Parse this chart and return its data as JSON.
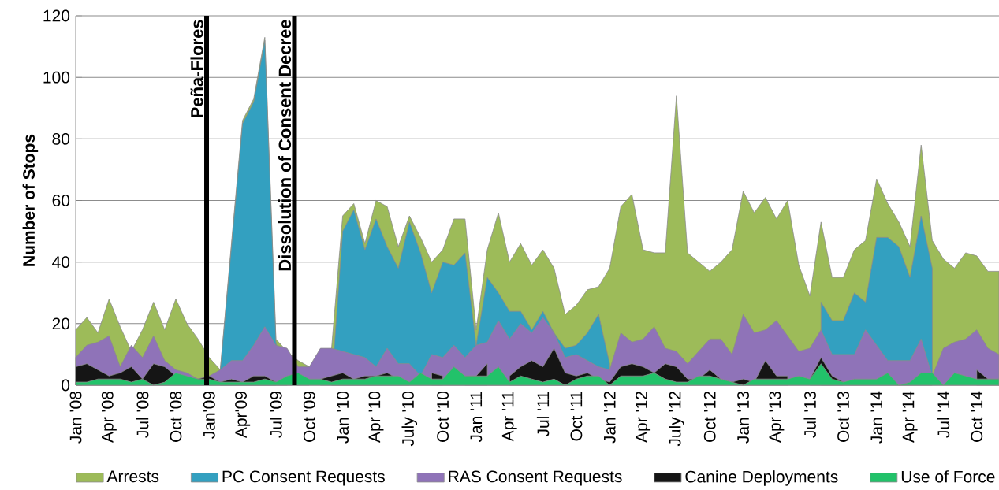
{
  "chart_data": {
    "type": "area",
    "ylabel": "Number of Stops",
    "x": [
      "2008-01",
      "2008-02",
      "2008-03",
      "2008-04",
      "2008-05",
      "2008-06",
      "2008-07",
      "2008-08",
      "2008-09",
      "2008-10",
      "2008-11",
      "2008-12",
      "2009-01",
      "2009-02",
      "2009-03",
      "2009-04",
      "2009-05",
      "2009-06",
      "2009-07",
      "2009-08",
      "2009-09",
      "2009-10",
      "2009-11",
      "2009-12",
      "2010-01",
      "2010-02",
      "2010-03",
      "2010-04",
      "2010-05",
      "2010-06",
      "2010-07",
      "2010-08",
      "2010-09",
      "2010-10",
      "2010-11",
      "2010-12",
      "2011-01",
      "2011-02",
      "2011-03",
      "2011-04",
      "2011-05",
      "2011-06",
      "2011-07",
      "2011-08",
      "2011-09",
      "2011-10",
      "2011-11",
      "2011-12",
      "2012-01",
      "2012-02",
      "2012-03",
      "2012-04",
      "2012-05",
      "2012-06",
      "2012-07",
      "2012-08",
      "2012-09",
      "2012-10",
      "2012-11",
      "2012-12",
      "2013-01",
      "2013-02",
      "2013-03",
      "2013-04",
      "2013-05",
      "2013-06",
      "2013-07",
      "2013-08",
      "2013-09",
      "2013-10",
      "2013-11",
      "2013-12",
      "2014-01",
      "2014-02",
      "2014-03",
      "2014-04",
      "2014-05",
      "2014-06",
      "2014-07",
      "2014-08",
      "2014-09",
      "2014-10",
      "2014-11",
      "2014-12"
    ],
    "series": [
      {
        "name": "Arrests",
        "color": "#9dbb59",
        "values": [
          18,
          22,
          17,
          28,
          19,
          11,
          18,
          27,
          18,
          28,
          20,
          15,
          9,
          5,
          46,
          86,
          93,
          113,
          15,
          11,
          8,
          6,
          null,
          12,
          55,
          59,
          46,
          60,
          58,
          45,
          55,
          48,
          40,
          44,
          54,
          54,
          18,
          44,
          56,
          40,
          46,
          39,
          44,
          38,
          23,
          26,
          31,
          32,
          38,
          58,
          62,
          44,
          43,
          43,
          94,
          43,
          40,
          37,
          40,
          44,
          63,
          56,
          61,
          54,
          60,
          39,
          29,
          53,
          35,
          35,
          44,
          47,
          67,
          59,
          53,
          45,
          78,
          47,
          41,
          38,
          43,
          42,
          37,
          37
        ]
      },
      {
        "name": "PC Consent Requests",
        "color": "#33a0c0",
        "values": [
          null,
          null,
          null,
          null,
          null,
          null,
          null,
          null,
          null,
          null,
          null,
          null,
          null,
          5,
          45,
          85,
          92,
          112,
          14,
          0,
          null,
          null,
          null,
          0,
          50,
          57,
          44,
          54,
          45,
          38,
          53,
          43,
          30,
          40,
          39,
          43,
          13,
          35,
          30,
          24,
          24,
          18,
          24,
          17,
          12,
          13,
          17,
          23,
          7,
          null,
          null,
          null,
          null,
          null,
          null,
          null,
          null,
          null,
          null,
          null,
          null,
          null,
          null,
          null,
          null,
          null,
          null,
          27,
          21,
          21,
          30,
          27,
          48,
          48,
          45,
          35,
          55,
          38,
          null,
          null,
          null,
          null,
          null,
          null
        ]
      },
      {
        "name": "RAS Consent Requests",
        "color": "#8f73b8",
        "values": [
          9,
          13,
          14,
          16,
          6,
          13,
          9,
          16,
          8,
          5,
          4,
          2,
          3,
          5,
          8,
          8,
          13,
          19,
          13,
          12,
          6,
          6,
          12,
          12,
          11,
          10,
          9,
          6,
          12,
          7,
          7,
          3,
          10,
          9,
          13,
          9,
          13,
          14,
          21,
          15,
          20,
          17,
          22,
          17,
          9,
          10,
          8,
          6,
          5,
          17,
          14,
          15,
          19,
          12,
          11,
          7,
          11,
          15,
          15,
          10,
          23,
          17,
          18,
          21,
          16,
          11,
          12,
          18,
          10,
          10,
          10,
          18,
          13,
          8,
          8,
          8,
          15,
          3,
          12,
          14,
          15,
          18,
          12,
          10
        ]
      },
      {
        "name": "Canine Deployments",
        "color": "#151515",
        "values": [
          6,
          7,
          5,
          3,
          4,
          6,
          2,
          7,
          6,
          3,
          2,
          2,
          3,
          1,
          2,
          1,
          3,
          3,
          1,
          null,
          null,
          null,
          2,
          3,
          4,
          2,
          3,
          3,
          4,
          2,
          1,
          null,
          4,
          3,
          null,
          3,
          3,
          7,
          null,
          3,
          6,
          8,
          6,
          12,
          4,
          3,
          4,
          2,
          1,
          6,
          7,
          6,
          4,
          7,
          6,
          2,
          2,
          5,
          2,
          1,
          2,
          1,
          8,
          3,
          3,
          null,
          2,
          9,
          3,
          1,
          null,
          null,
          null,
          null,
          null,
          null,
          null,
          null,
          null,
          null,
          null,
          5,
          2,
          2
        ]
      },
      {
        "name": "Use of Force",
        "color": "#22c26a",
        "values": [
          1,
          1,
          2,
          2,
          2,
          1,
          2,
          0,
          1,
          4,
          3,
          2,
          2,
          1,
          1,
          1,
          1,
          2,
          1,
          3,
          4,
          2,
          2,
          1,
          2,
          2,
          2,
          3,
          3,
          3,
          1,
          4,
          2,
          2,
          6,
          3,
          3,
          3,
          6,
          1,
          3,
          2,
          1,
          2,
          0,
          2,
          3,
          3,
          0,
          3,
          3,
          3,
          4,
          2,
          1,
          1,
          3,
          3,
          2,
          1,
          0,
          2,
          2,
          2,
          2,
          3,
          2,
          7,
          2,
          1,
          2,
          2,
          2,
          4,
          0,
          1,
          4,
          4,
          0,
          4,
          3,
          2,
          2,
          2
        ]
      }
    ],
    "xlim": [
      "2008-01",
      "2014-12"
    ],
    "xticks": [
      {
        "value": "2008-01",
        "label": "Jan '08"
      },
      {
        "value": "2008-04",
        "label": "Apr '08"
      },
      {
        "value": "2008-07",
        "label": "Jul '08"
      },
      {
        "value": "2008-10",
        "label": "Oct '08"
      },
      {
        "value": "2009-01",
        "label": "Jan'09"
      },
      {
        "value": "2009-04",
        "label": "Apr'09"
      },
      {
        "value": "2009-07",
        "label": "Jul '09"
      },
      {
        "value": "2009-10",
        "label": "Oct '09"
      },
      {
        "value": "2010-01",
        "label": "Jan '10"
      },
      {
        "value": "2010-04",
        "label": "Apr '10"
      },
      {
        "value": "2010-07",
        "label": "July '10"
      },
      {
        "value": "2010-10",
        "label": "Oct '10"
      },
      {
        "value": "2011-01",
        "label": "Jan '11"
      },
      {
        "value": "2011-04",
        "label": "Apr '11"
      },
      {
        "value": "2011-07",
        "label": "Jul '11"
      },
      {
        "value": "2011-10",
        "label": "Oct '11"
      },
      {
        "value": "2012-01",
        "label": "Jan '12"
      },
      {
        "value": "2012-04",
        "label": "Apr '12"
      },
      {
        "value": "2012-07",
        "label": "July '12"
      },
      {
        "value": "2012-10",
        "label": "Oct '12"
      },
      {
        "value": "2013-01",
        "label": "Jan '13"
      },
      {
        "value": "2013-04",
        "label": "Apr '13"
      },
      {
        "value": "2013-07",
        "label": "Jul '13"
      },
      {
        "value": "2013-10",
        "label": "Oct '13"
      },
      {
        "value": "2014-01",
        "label": "Jan '14"
      },
      {
        "value": "2014-04",
        "label": "Apr '14"
      },
      {
        "value": "2014-07",
        "label": "Jul '14"
      },
      {
        "value": "2014-10",
        "label": "Oct '14"
      }
    ],
    "ylim": [
      0,
      120
    ],
    "yticks": [
      0,
      20,
      40,
      60,
      80,
      100,
      120
    ],
    "grid": "y",
    "legend": "bottom",
    "ref_lines": [
      {
        "axis": "x",
        "value": "2008-12-24",
        "label": "Peña-Flores",
        "color": "#000000"
      },
      {
        "axis": "x",
        "value": "2009-08-21",
        "label": "Dissolution of Consent Decree",
        "color": "#000000"
      }
    ]
  }
}
